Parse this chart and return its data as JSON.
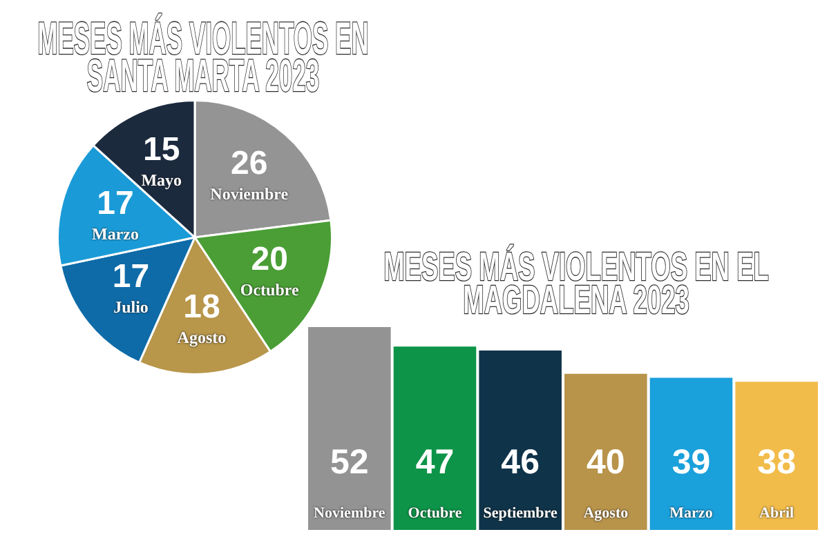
{
  "chart_data": [
    {
      "type": "pie",
      "title": "MESES MÁS VIOLENTOS EN SANTA MARTA 2023",
      "categories": [
        "Noviembre",
        "Octubre",
        "Agosto",
        "Julio",
        "Marzo",
        "Mayo"
      ],
      "values": [
        26,
        20,
        18,
        17,
        17,
        15
      ],
      "colors": [
        "#949494",
        "#4a9e35",
        "#b8964a",
        "#0e6ba8",
        "#1a9bd7",
        "#1c2a3e"
      ],
      "data_labels": true
    },
    {
      "type": "bar",
      "title": "MESES MÁS VIOLENTOS EN EL MAGDALENA 2023",
      "categories": [
        "Noviembre",
        "Octubre",
        "Septiembre",
        "Agosto",
        "Marzo",
        "Abril"
      ],
      "values": [
        52,
        47,
        46,
        40,
        39,
        38
      ],
      "colors": [
        "#939393",
        "#0d9448",
        "#0f3349",
        "#b8934a",
        "#1aa0db",
        "#f2bc4a"
      ],
      "data_labels": true,
      "tick_labels": "x"
    }
  ]
}
